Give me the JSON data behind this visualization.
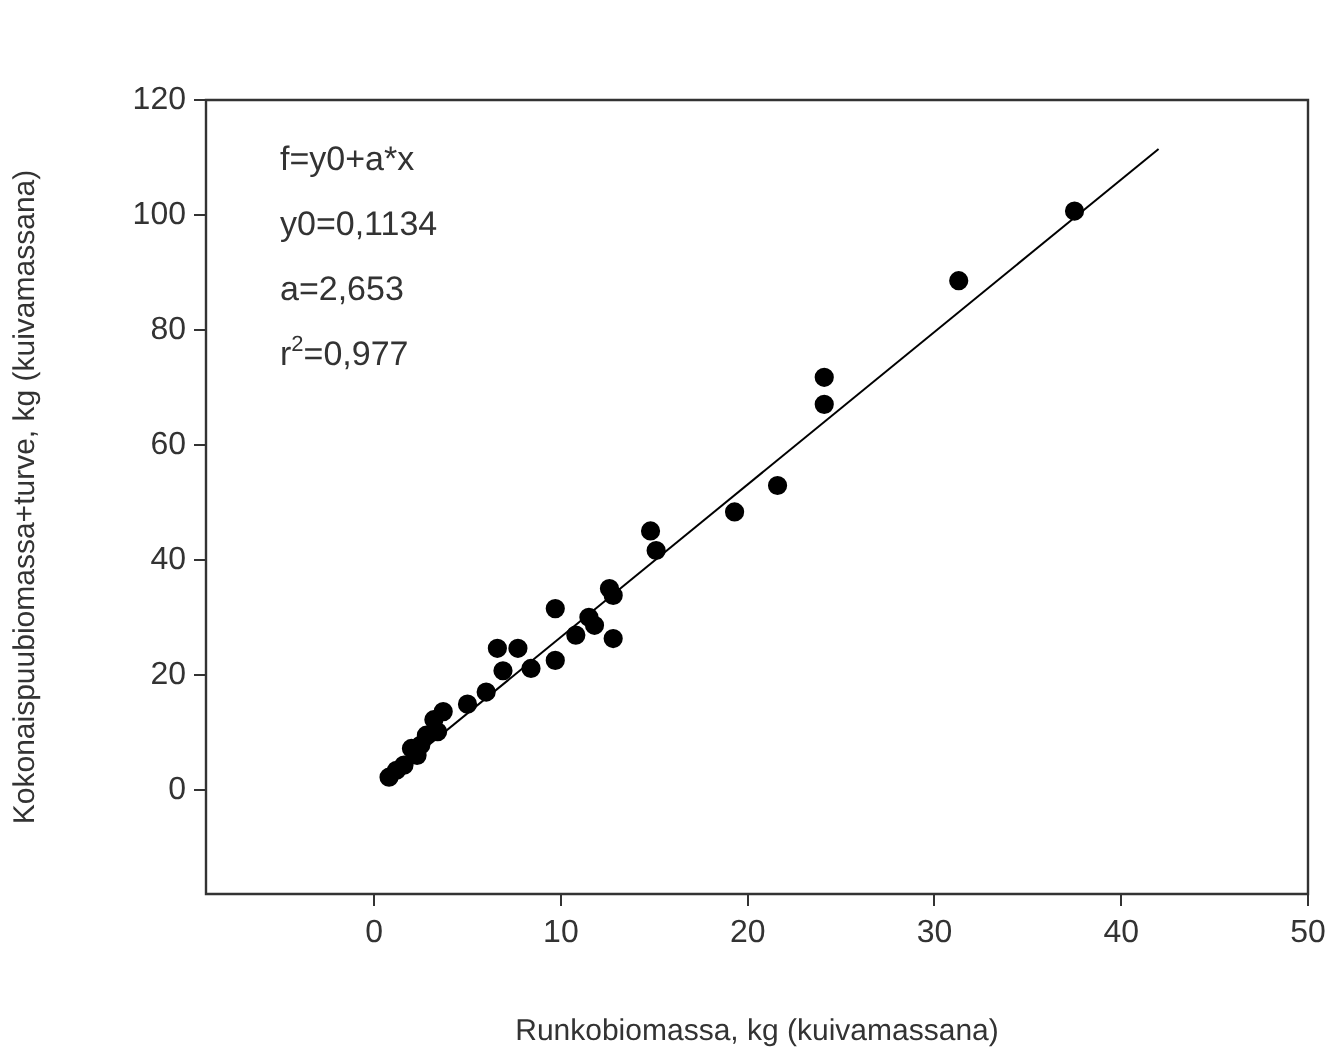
{
  "chart_data": {
    "type": "scatter",
    "xlabel": "Runkobiomassa, kg (kuivamassana)",
    "ylabel": "Kokonaispuubiomassa+turve, kg (kuivamassana)",
    "xlim": [
      -9,
      50
    ],
    "xticks": [
      0,
      10,
      20,
      30,
      40,
      50
    ],
    "ylim": [
      -18,
      120
    ],
    "yticks": [
      0,
      20,
      40,
      60,
      80,
      100,
      120
    ],
    "grid": false,
    "legend": false,
    "marker": "circle",
    "annotations": [
      "f=y0+a*x",
      "y0=0,1134",
      "a=2,653",
      "r$^{2}$=0,977"
    ],
    "series": [
      {
        "color": "#000000",
        "x": [
          37.5,
          31.3,
          24.1,
          24.1,
          21.6,
          19.3,
          14.8,
          15.1,
          12.6,
          12.8,
          12.8,
          11.5,
          11.8,
          10.8,
          9.7,
          9.7,
          8.4,
          7.7,
          6.6,
          6.9,
          6.0,
          5.0,
          3.7,
          3.2,
          3.4,
          2.8,
          2.5,
          2.0,
          2.3,
          1.6,
          1.2,
          0.8
        ],
        "values": [
          100.7,
          88.6,
          71.8,
          67.1,
          53.0,
          48.4,
          45.1,
          41.7,
          35.1,
          33.9,
          26.4,
          30.1,
          28.7,
          27.0,
          31.6,
          22.6,
          21.2,
          24.7,
          24.7,
          20.8,
          17.1,
          15.0,
          13.7,
          12.3,
          10.2,
          9.6,
          7.9,
          7.3,
          6.1,
          4.4,
          3.5,
          2.3
        ]
      },
      {
        "type": "line",
        "color": "#000000",
        "x": [
          1,
          42
        ],
        "values": [
          2.8,
          111.5
        ],
        "marker": "none"
      }
    ]
  }
}
